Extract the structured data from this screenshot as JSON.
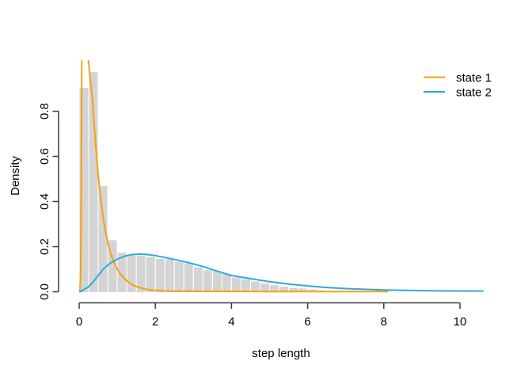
{
  "chart_data": {
    "type": "bar",
    "subtype": "histogram-with-density-lines",
    "title": "",
    "xlabel": "step length",
    "ylabel": "Density",
    "x_ticks": [
      0,
      2,
      4,
      6,
      8,
      10
    ],
    "x_tick_labels": [
      "0",
      "2",
      "4",
      "6",
      "8",
      "10"
    ],
    "y_ticks": [
      0.0,
      0.2,
      0.4,
      0.6,
      0.8
    ],
    "y_tick_labels": [
      "0.0",
      "0.2",
      "0.4",
      "0.6",
      "0.8"
    ],
    "xlim": [
      -0.42,
      11.02
    ],
    "ylim": [
      -0.039,
      1.026
    ],
    "grid": "off",
    "histogram": {
      "bin_start": 0,
      "bin_width": 0.25,
      "fill_color": "#D4D4D4",
      "border_color": "#FFFFFF",
      "densities": [
        0.905,
        0.975,
        0.47,
        0.23,
        0.175,
        0.162,
        0.162,
        0.155,
        0.148,
        0.146,
        0.135,
        0.128,
        0.11,
        0.098,
        0.092,
        0.08,
        0.065,
        0.057,
        0.047,
        0.039,
        0.031,
        0.024,
        0.019,
        0.016,
        0.012,
        0.007,
        0.004,
        0.003
      ]
    },
    "series": [
      {
        "name": "state 1",
        "color": "#F9A00C",
        "points": [
          [
            0.02,
            0.0
          ],
          [
            0.04,
            0.1
          ],
          [
            0.05,
            0.3
          ],
          [
            0.06,
            0.7
          ],
          [
            0.08,
            1.3
          ],
          [
            0.15,
            1.6
          ],
          [
            0.22,
            1.3
          ],
          [
            0.24,
            1.03
          ],
          [
            0.3,
            0.93
          ],
          [
            0.35,
            0.85
          ],
          [
            0.4,
            0.73
          ],
          [
            0.45,
            0.62
          ],
          [
            0.5,
            0.52
          ],
          [
            0.55,
            0.435
          ],
          [
            0.6,
            0.365
          ],
          [
            0.65,
            0.305
          ],
          [
            0.7,
            0.26
          ],
          [
            0.75,
            0.22
          ],
          [
            0.8,
            0.185
          ],
          [
            0.9,
            0.135
          ],
          [
            1.0,
            0.1
          ],
          [
            1.1,
            0.075
          ],
          [
            1.25,
            0.048
          ],
          [
            1.4,
            0.03
          ],
          [
            1.5,
            0.023
          ],
          [
            1.75,
            0.011
          ],
          [
            2.0,
            0.006
          ],
          [
            2.25,
            0.0035
          ],
          [
            2.5,
            0.0025
          ],
          [
            3.0,
            0.002
          ],
          [
            4.0,
            0.0015
          ],
          [
            5.0,
            0.001
          ],
          [
            6.0,
            0.001
          ],
          [
            8.1,
            0.001
          ]
        ]
      },
      {
        "name": "state 2",
        "color": "#2EA8E2",
        "points": [
          [
            0.02,
            0.0
          ],
          [
            0.25,
            0.022
          ],
          [
            0.4,
            0.05
          ],
          [
            0.63,
            0.1
          ],
          [
            0.8,
            0.125
          ],
          [
            1.0,
            0.145
          ],
          [
            1.2,
            0.158
          ],
          [
            1.4,
            0.165
          ],
          [
            1.6,
            0.167
          ],
          [
            1.8,
            0.165
          ],
          [
            2.0,
            0.16
          ],
          [
            2.25,
            0.152
          ],
          [
            2.5,
            0.143
          ],
          [
            2.75,
            0.134
          ],
          [
            3.0,
            0.123
          ],
          [
            3.25,
            0.112
          ],
          [
            3.5,
            0.098
          ],
          [
            3.75,
            0.085
          ],
          [
            4.0,
            0.072
          ],
          [
            4.5,
            0.058
          ],
          [
            5.0,
            0.045
          ],
          [
            5.5,
            0.034
          ],
          [
            6.0,
            0.026
          ],
          [
            6.5,
            0.019
          ],
          [
            7.0,
            0.014
          ],
          [
            7.5,
            0.011
          ],
          [
            8.0,
            0.008
          ],
          [
            8.5,
            0.0065
          ],
          [
            9.0,
            0.005
          ],
          [
            9.5,
            0.004
          ],
          [
            10.0,
            0.0035
          ],
          [
            10.6,
            0.003
          ]
        ]
      }
    ],
    "legend": {
      "position": "topright",
      "entries": [
        {
          "label": "state 1",
          "color": "#F9A00C"
        },
        {
          "label": "state 2",
          "color": "#2EA8E2"
        }
      ]
    },
    "axis_color": "#3C3C3C",
    "text_color": "#000000"
  }
}
